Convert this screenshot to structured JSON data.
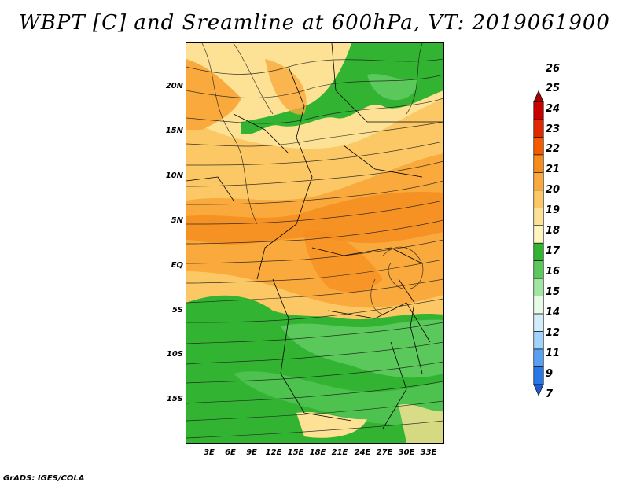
{
  "title": "WBPT [C] and Sreamline at 600hPa, VT: 2019061900",
  "footer": "GrADS: IGES/COLA",
  "map": {
    "lat_labels": [
      "20N",
      "15N",
      "10N",
      "5N",
      "EQ",
      "5S",
      "10S",
      "15S"
    ],
    "lon_labels": [
      "3E",
      "6E",
      "9E",
      "12E",
      "15E",
      "18E",
      "21E",
      "24E",
      "27E",
      "30E",
      "33E"
    ]
  },
  "colorbar": {
    "labels": [
      "26",
      "25",
      "24",
      "23",
      "22",
      "21",
      "20",
      "19",
      "18",
      "17",
      "16",
      "15",
      "14",
      "12",
      "11",
      "9",
      "7"
    ],
    "colors": [
      "#a50000",
      "#c80000",
      "#e12800",
      "#f55a00",
      "#f58c1e",
      "#faaa3c",
      "#fcc865",
      "#fde296",
      "#fff5bf",
      "#32b432",
      "#5ac85a",
      "#a0e6a0",
      "#e6fae6",
      "#d2ecfa",
      "#a0d2fa",
      "#5aa0f0",
      "#2a78e6",
      "#1e5ad2"
    ]
  }
}
